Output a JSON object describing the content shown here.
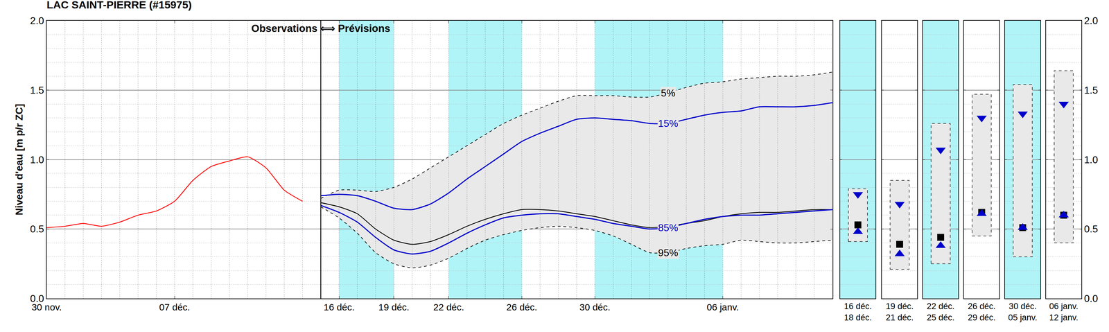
{
  "chart_data": {
    "type": "line",
    "title": "LAC SAINT-PIERRE (#15975)",
    "ylabel": "Niveau d'eau [m p/r ZC]",
    "split_label": "Observations ⟺ Prévisions",
    "ylim": [
      0,
      2
    ],
    "yticks": [
      {
        "value": 0,
        "label": "0.0"
      },
      0.5,
      {
        "value": 1,
        "label": "1.0"
      },
      1.5,
      {
        "value": 2,
        "label": "2.0"
      }
    ],
    "grid": true,
    "legend": false,
    "categories": [
      "30 nov.",
      null,
      null,
      null,
      null,
      null,
      null,
      "07 déc.",
      null,
      null,
      null,
      null,
      null,
      null,
      null,
      null,
      "16 déc.",
      null,
      null,
      "19 déc.",
      null,
      null,
      "22 déc.",
      null,
      null,
      null,
      "26 déc.",
      null,
      null,
      null,
      "30 déc.",
      null,
      null,
      null,
      null,
      null,
      null,
      "06 janv.",
      null,
      null,
      null,
      null,
      null,
      null
    ],
    "shaded_periods": [
      {
        "start": "16 déc.",
        "end": "19 déc.",
        "color": "#b0f4f8"
      },
      {
        "start": "22 déc.",
        "end": "26 déc.",
        "color": "#b0f4f8"
      },
      {
        "start": "30 déc.",
        "end": "06 janv.",
        "color": "#b0f4f8"
      }
    ],
    "series": [
      {
        "color": "#ff0000",
        "line_style": "solid",
        "values": [
          0.51,
          0.52,
          0.54,
          0.52,
          0.55,
          0.6,
          0.63,
          0.7,
          0.85,
          0.95,
          0.99,
          1.02,
          0.94,
          0.78,
          0.7,
          null,
          null,
          null,
          null,
          null,
          null,
          null,
          null,
          null,
          null,
          null,
          null,
          null,
          null,
          null,
          null,
          null,
          null,
          null,
          null,
          null,
          null,
          null,
          null,
          null,
          null,
          null,
          null,
          null
        ]
      },
      {
        "name": "5%",
        "color": "#000000",
        "line_style": "dashed",
        "values": [
          null,
          null,
          null,
          null,
          null,
          null,
          null,
          null,
          null,
          null,
          null,
          null,
          null,
          null,
          null,
          0.72,
          0.78,
          0.78,
          0.77,
          0.8,
          0.86,
          0.94,
          1.02,
          1.1,
          1.18,
          1.26,
          1.32,
          1.37,
          1.42,
          1.46,
          1.46,
          1.46,
          1.45,
          1.45,
          1.48,
          1.52,
          1.55,
          1.56,
          1.58,
          1.59,
          1.6,
          1.6,
          1.61,
          1.63
        ]
      },
      {
        "name": "15%",
        "color": "#0000cc",
        "line_style": "solid",
        "values": [
          null,
          null,
          null,
          null,
          null,
          null,
          null,
          null,
          null,
          null,
          null,
          null,
          null,
          null,
          null,
          0.74,
          0.75,
          0.74,
          0.7,
          0.65,
          0.64,
          0.68,
          0.76,
          0.86,
          0.95,
          1.04,
          1.13,
          1.19,
          1.24,
          1.29,
          1.3,
          1.29,
          1.28,
          1.26,
          1.26,
          1.29,
          1.32,
          1.34,
          1.35,
          1.38,
          1.38,
          1.38,
          1.39,
          1.41
        ]
      },
      {
        "color": "#000000",
        "line_style": "solid",
        "values": [
          null,
          null,
          null,
          null,
          null,
          null,
          null,
          null,
          null,
          null,
          null,
          null,
          null,
          null,
          null,
          0.69,
          0.66,
          0.61,
          0.5,
          0.42,
          0.39,
          0.41,
          0.46,
          0.52,
          0.57,
          0.61,
          0.64,
          0.64,
          0.63,
          0.61,
          0.59,
          0.56,
          0.53,
          0.51,
          0.52,
          0.54,
          0.56,
          0.59,
          0.61,
          0.62,
          0.62,
          0.63,
          0.64,
          0.64
        ]
      },
      {
        "name": "85%",
        "color": "#0000cc",
        "line_style": "solid",
        "values": [
          null,
          null,
          null,
          null,
          null,
          null,
          null,
          null,
          null,
          null,
          null,
          null,
          null,
          null,
          null,
          0.67,
          0.62,
          0.55,
          0.44,
          0.35,
          0.32,
          0.34,
          0.4,
          0.47,
          0.53,
          0.58,
          0.6,
          0.61,
          0.61,
          0.59,
          0.57,
          0.54,
          0.52,
          0.5,
          0.51,
          0.54,
          0.57,
          0.59,
          0.6,
          0.6,
          0.61,
          0.62,
          0.63,
          0.64
        ]
      },
      {
        "name": "95%",
        "color": "#000000",
        "line_style": "dashed",
        "values": [
          null,
          null,
          null,
          null,
          null,
          null,
          null,
          null,
          null,
          null,
          null,
          null,
          null,
          null,
          null,
          0.66,
          0.58,
          0.47,
          0.33,
          0.25,
          0.22,
          0.24,
          0.29,
          0.36,
          0.42,
          0.46,
          0.49,
          0.51,
          0.52,
          0.51,
          0.49,
          0.45,
          0.39,
          0.33,
          0.33,
          0.36,
          0.38,
          0.39,
          0.42,
          0.41,
          0.4,
          0.4,
          0.41,
          0.42
        ]
      }
    ],
    "panels": [
      {
        "start": "16 déc.",
        "end": "18 déc.",
        "color": "#b0f4f8",
        "p5": 0.79,
        "p15": 0.75,
        "median": 0.53,
        "p85": 0.48,
        "p95": 0.41
      },
      {
        "start": "19 déc.",
        "end": "21 déc.",
        "color": "#ffffff",
        "p5": 0.85,
        "p15": 0.68,
        "median": 0.39,
        "p85": 0.32,
        "p95": 0.21
      },
      {
        "start": "22 déc.",
        "end": "25 déc.",
        "color": "#b0f4f8",
        "p5": 1.26,
        "p15": 1.07,
        "median": 0.44,
        "p85": 0.38,
        "p95": 0.25
      },
      {
        "start": "26 déc.",
        "end": "29 déc.",
        "color": "#ffffff",
        "p5": 1.47,
        "p15": 1.3,
        "median": 0.62,
        "p85": 0.61,
        "p95": 0.45
      },
      {
        "start": "30 déc.",
        "end": "05 janv.",
        "color": "#b0f4f8",
        "p5": 1.54,
        "p15": 1.33,
        "median": 0.51,
        "p85": 0.51,
        "p95": 0.3
      },
      {
        "start": "06 janv.",
        "end": "12 janv.",
        "color": "#ffffff",
        "p5": 1.64,
        "p15": 1.4,
        "median": 0.6,
        "p85": 0.6,
        "p95": 0.4
      }
    ]
  }
}
